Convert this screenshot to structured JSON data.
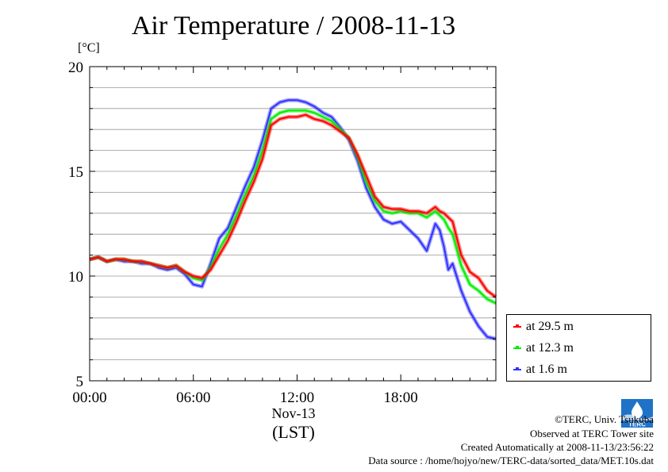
{
  "chart_data": {
    "type": "line",
    "title": "Air Temperature / 2008-11-13",
    "ylabel": "[°C]",
    "xlabel": "(LST)",
    "x_sublabel": "Nov-13",
    "xlim": [
      0,
      23.5
    ],
    "ylim": [
      5,
      20
    ],
    "x_ticks": [
      0,
      6,
      12,
      18
    ],
    "x_tick_labels": [
      "00:00",
      "06:00",
      "12:00",
      "18:00"
    ],
    "y_ticks": [
      5,
      10,
      15,
      20
    ],
    "y_tick_labels": [
      "5",
      "10",
      "15",
      "20"
    ],
    "grid": true,
    "legend_position": "bottom-right",
    "x": [
      0,
      0.5,
      1,
      1.5,
      2,
      2.5,
      3,
      3.5,
      4,
      4.5,
      5,
      5.5,
      6,
      6.5,
      7,
      7.5,
      8,
      8.5,
      9,
      9.5,
      10,
      10.5,
      11,
      11.5,
      12,
      12.5,
      13,
      13.5,
      14,
      14.5,
      15,
      15.5,
      16,
      16.5,
      17,
      17.5,
      18,
      18.5,
      19,
      19.5,
      20,
      20.25,
      20.5,
      20.75,
      21,
      21.5,
      22,
      22.5,
      23,
      23.5
    ],
    "series": [
      {
        "name": "at 29.5 m",
        "color": "#ff0000",
        "values": [
          10.8,
          10.9,
          10.7,
          10.8,
          10.8,
          10.7,
          10.7,
          10.6,
          10.5,
          10.4,
          10.5,
          10.2,
          10.0,
          9.9,
          10.3,
          11.0,
          11.7,
          12.6,
          13.6,
          14.5,
          15.6,
          17.2,
          17.5,
          17.6,
          17.6,
          17.7,
          17.5,
          17.4,
          17.2,
          16.9,
          16.6,
          15.8,
          14.8,
          13.8,
          13.3,
          13.2,
          13.2,
          13.1,
          13.1,
          13.0,
          13.3,
          13.1,
          13.0,
          12.8,
          12.6,
          11.0,
          10.2,
          9.9,
          9.3,
          9.0
        ]
      },
      {
        "name": "at 12.3 m",
        "color": "#00ee00",
        "values": [
          10.8,
          10.9,
          10.7,
          10.8,
          10.8,
          10.7,
          10.7,
          10.6,
          10.5,
          10.4,
          10.5,
          10.2,
          9.9,
          9.8,
          10.4,
          11.3,
          12.0,
          12.9,
          13.9,
          14.8,
          16.0,
          17.5,
          17.8,
          17.9,
          17.9,
          17.9,
          17.8,
          17.6,
          17.4,
          17.0,
          16.6,
          15.7,
          14.5,
          13.6,
          13.1,
          13.0,
          13.1,
          13.0,
          13.0,
          12.8,
          13.1,
          12.9,
          12.7,
          12.3,
          12.0,
          10.5,
          9.6,
          9.3,
          8.9,
          8.7
        ]
      },
      {
        "name": "at 1.6 m",
        "color": "#3333ff",
        "values": [
          10.8,
          10.9,
          10.7,
          10.8,
          10.7,
          10.7,
          10.6,
          10.6,
          10.4,
          10.3,
          10.4,
          10.1,
          9.6,
          9.5,
          10.6,
          11.8,
          12.3,
          13.3,
          14.3,
          15.2,
          16.5,
          18.0,
          18.3,
          18.4,
          18.4,
          18.3,
          18.1,
          17.8,
          17.6,
          17.1,
          16.5,
          15.5,
          14.2,
          13.3,
          12.7,
          12.5,
          12.6,
          12.2,
          11.8,
          11.2,
          12.5,
          12.2,
          11.4,
          10.3,
          10.6,
          9.3,
          8.3,
          7.6,
          7.1,
          7.0
        ]
      }
    ]
  },
  "footer": {
    "copyright": "©TERC, Univ. Tsukuba",
    "site": "Observed at TERC Tower site",
    "created": "Created Automatically at 2008-11-13/23:56:22",
    "source": "Data source : /home/hojyo/new/TERC-data/sorted_data/MET.10s.dat"
  },
  "logo_text": "TERC",
  "colors": {
    "legend_red": "#ff0000",
    "legend_green": "#00ee00",
    "legend_blue": "#3333ff"
  }
}
